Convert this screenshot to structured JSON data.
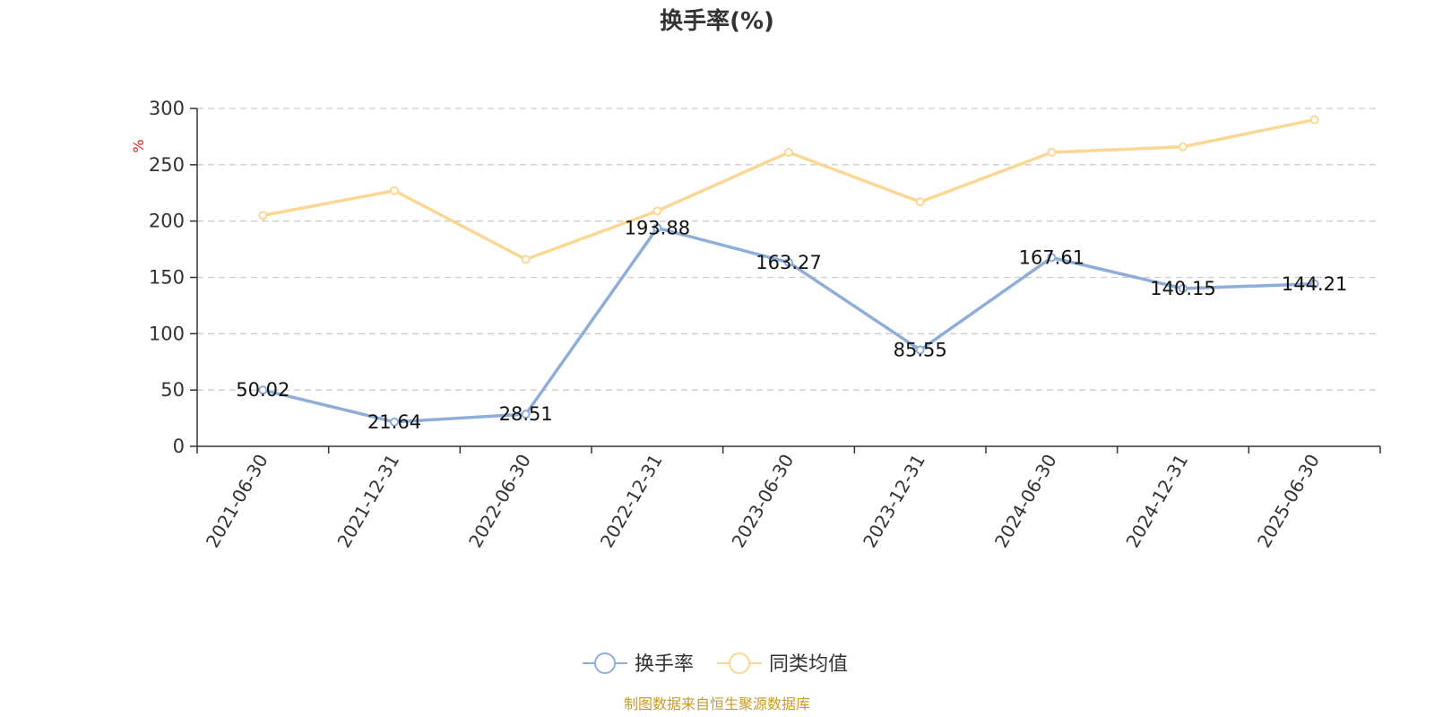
{
  "chart_data": {
    "type": "line",
    "title": "换手率(%)",
    "ylabel": "%",
    "ylim": [
      0,
      300
    ],
    "yticks": [
      0,
      50,
      100,
      150,
      200,
      250,
      300
    ],
    "grid": true,
    "legend_position": "bottom-center",
    "categories": [
      "2021-06-30",
      "2021-12-31",
      "2022-06-30",
      "2022-12-31",
      "2023-06-30",
      "2023-12-31",
      "2024-06-30",
      "2024-12-31",
      "2025-06-30"
    ],
    "series": [
      {
        "name": "换手率",
        "color": "#8eadd8",
        "values": [
          50.02,
          21.64,
          28.51,
          193.88,
          163.27,
          85.55,
          167.61,
          140.15,
          144.21
        ],
        "show_labels": true
      },
      {
        "name": "同类均值",
        "color": "#fad795",
        "values": [
          205,
          227,
          166,
          209,
          261,
          217,
          261,
          266,
          290
        ],
        "show_labels": false
      }
    ]
  },
  "source_text": "制图数据来自恒生聚源数据库"
}
